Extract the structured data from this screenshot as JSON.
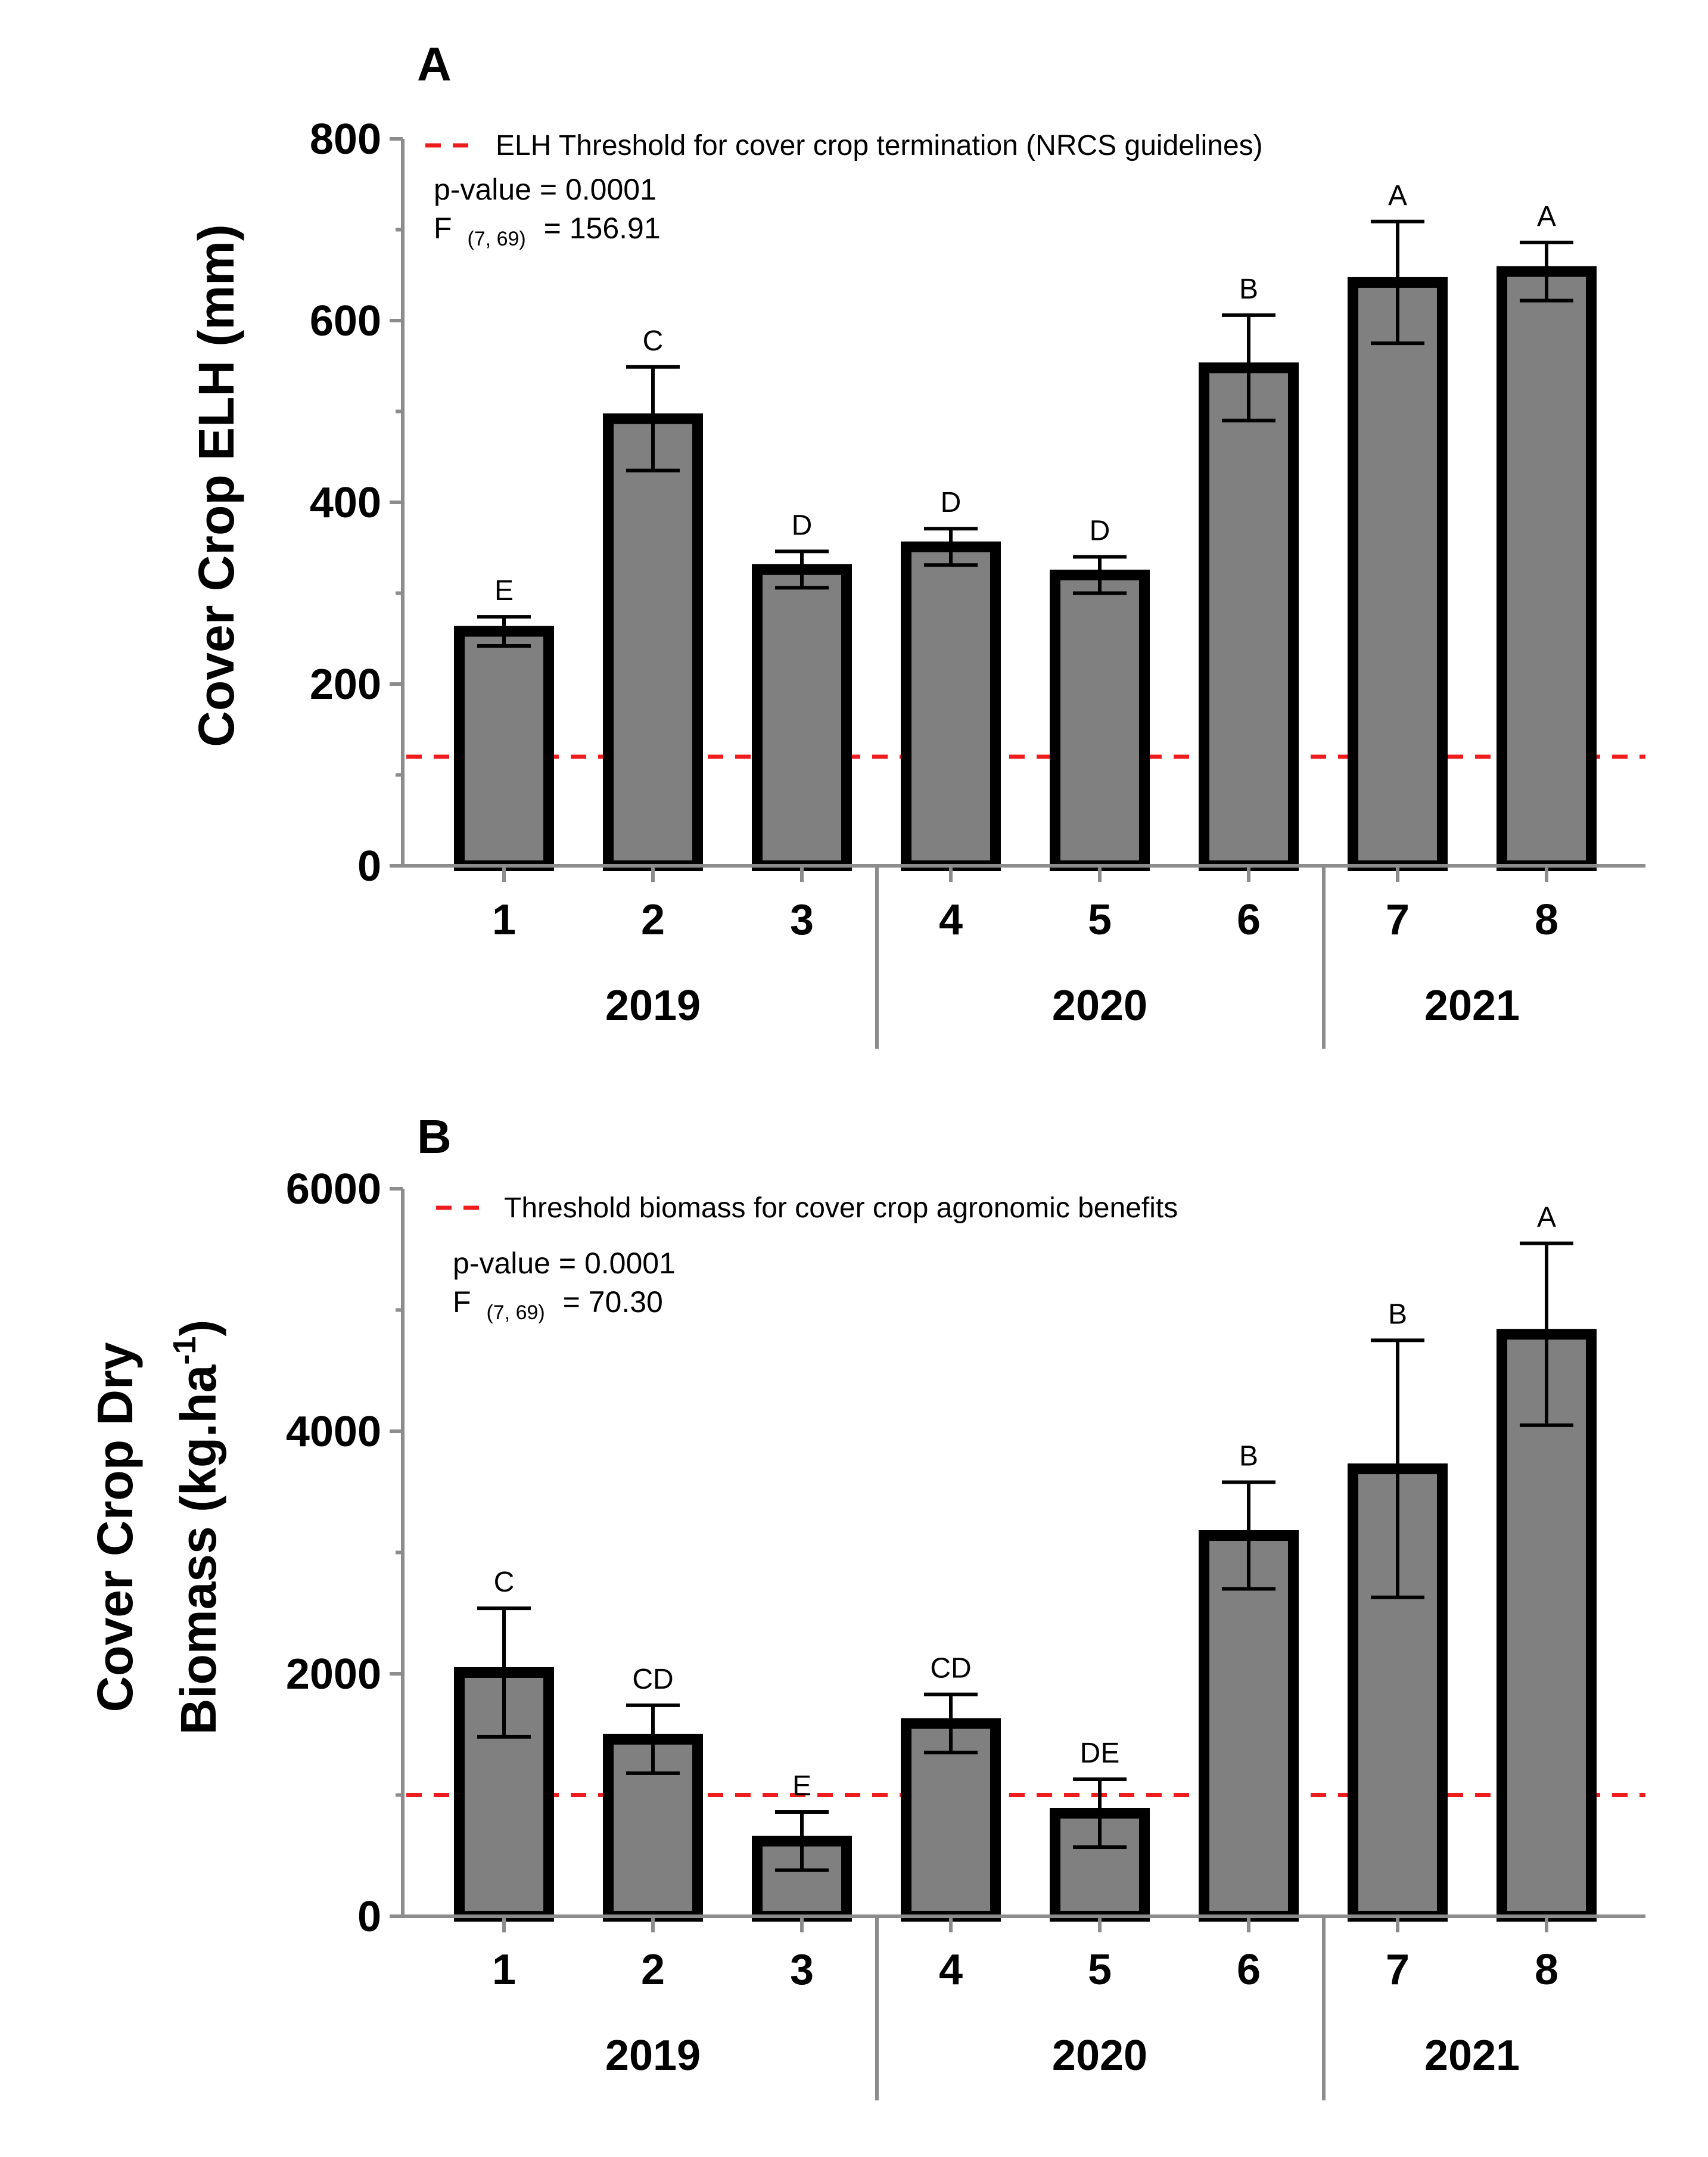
{
  "chart_data": [
    {
      "panel": "A",
      "type": "bar",
      "ylabel": "Cover Crop ELH (mm)",
      "ylim": [
        0,
        800
      ],
      "yticks": [
        0,
        200,
        400,
        600,
        800
      ],
      "categories": [
        "1",
        "2",
        "3",
        "4",
        "5",
        "6",
        "7",
        "8"
      ],
      "groups": [
        {
          "label": "2019",
          "categories": [
            "1",
            "2",
            "3"
          ]
        },
        {
          "label": "2020",
          "categories": [
            "4",
            "5",
            "6"
          ]
        },
        {
          "label": "2021",
          "categories": [
            "7",
            "8"
          ]
        }
      ],
      "values": [
        258,
        492,
        326,
        351,
        320,
        548,
        642,
        654
      ],
      "error": [
        16,
        57,
        20,
        20,
        20,
        58,
        67,
        32
      ],
      "significance_letters": [
        "E",
        "C",
        "D",
        "D",
        "D",
        "B",
        "A",
        "A"
      ],
      "threshold": {
        "value": 120,
        "label": "ELH Threshold for cover crop termination  (NRCS guidelines)",
        "color": "#ee1c1c"
      },
      "stats": {
        "p": "p-value = 0.0001",
        "f_prefix": "F",
        "f_sub": "(7, 69)",
        "f_value": "= 156.91"
      },
      "bar_color": "#808080",
      "legend_position": "top-left"
    },
    {
      "panel": "B",
      "type": "bar",
      "ylabel_line1": "Cover Crop Dry",
      "ylabel_line2": "Biomass (kg.ha",
      "ylabel_sup": "-1",
      "ylabel_close": ")",
      "ylim": [
        0,
        6000
      ],
      "yticks": [
        0,
        2000,
        4000,
        6000
      ],
      "categories": [
        "1",
        "2",
        "3",
        "4",
        "5",
        "6",
        "7",
        "8"
      ],
      "groups": [
        {
          "label": "2019",
          "categories": [
            "1",
            "2",
            "3"
          ]
        },
        {
          "label": "2020",
          "categories": [
            "4",
            "5",
            "6"
          ]
        },
        {
          "label": "2021",
          "categories": [
            "7",
            "8"
          ]
        }
      ],
      "values": [
        2010,
        1460,
        620,
        1590,
        850,
        3140,
        3690,
        4800
      ],
      "error": [
        530,
        280,
        240,
        240,
        280,
        440,
        1060,
        750
      ],
      "significance_letters": [
        "C",
        "CD",
        "E",
        "CD",
        "DE",
        "B",
        "B",
        "A"
      ],
      "threshold": {
        "value": 1000,
        "label": "Threshold biomass for cover crop agronomic benefits",
        "color": "#ee1c1c"
      },
      "stats": {
        "p": "p-value = 0.0001",
        "f_prefix": "F",
        "f_sub": "(7, 69)",
        "f_value": "= 70.30"
      },
      "bar_color": "#808080",
      "legend_position": "top-left"
    }
  ]
}
